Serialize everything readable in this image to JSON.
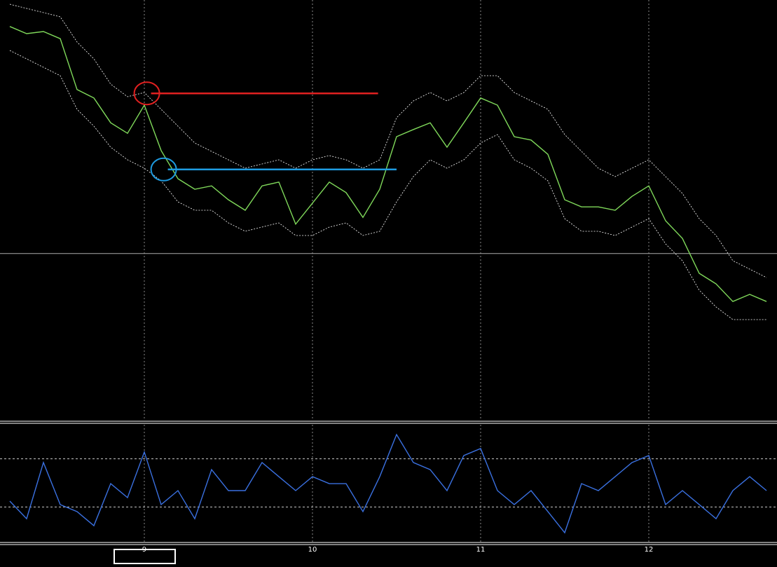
{
  "chart_data": [
    {
      "type": "line",
      "x": [
        8.2,
        8.3,
        8.4,
        8.5,
        8.6,
        8.7,
        8.8,
        8.9,
        9.0,
        9.1,
        9.2,
        9.3,
        9.4,
        9.5,
        9.6,
        9.7,
        9.8,
        9.9,
        10.0,
        10.1,
        10.2,
        10.3,
        10.4,
        10.5,
        10.6,
        10.7,
        10.8,
        10.9,
        11.0,
        11.1,
        11.2,
        11.3,
        11.4,
        11.5,
        11.6,
        11.7,
        11.8,
        11.9,
        12.0,
        12.1,
        12.2,
        12.3,
        12.4,
        12.5,
        12.6,
        12.7
      ],
      "xlim": [
        8.1417,
        12.7625
      ],
      "xticks": [
        9,
        10,
        11,
        12
      ],
      "ylim": [
        0,
        100
      ],
      "grid": true,
      "hline": 39.7,
      "series": [
        {
          "color": "#7fd85a",
          "style": "solid",
          "values": [
            93.7,
            92.0,
            92.5,
            90.8,
            78.7,
            76.7,
            70.8,
            68.3,
            75.0,
            64.2,
            57.5,
            55.0,
            55.8,
            52.5,
            50.0,
            55.8,
            56.7,
            46.7,
            51.7,
            56.7,
            54.2,
            48.3,
            55.0,
            67.5,
            69.2,
            70.8,
            65.0,
            70.8,
            76.7,
            75.0,
            67.5,
            66.7,
            63.3,
            52.5,
            50.8,
            50.8,
            50.0,
            53.3,
            55.8,
            47.5,
            43.3,
            35.0,
            32.5,
            28.3,
            30.0,
            28.3
          ]
        },
        {
          "color": "#ffffff",
          "style": "dotted",
          "values": [
            99,
            98,
            97,
            96,
            90,
            86,
            80,
            77,
            78,
            74,
            70,
            66,
            64,
            62,
            60,
            61,
            62,
            60,
            62,
            63,
            62,
            60,
            62,
            72,
            76,
            78,
            76,
            78,
            82,
            82,
            78,
            76,
            74,
            68,
            64,
            60,
            58,
            60,
            62,
            58,
            54,
            48,
            44,
            38,
            36,
            34
          ]
        },
        {
          "color": "#ffffff",
          "style": "dotted",
          "values": [
            88,
            86,
            84,
            82,
            74,
            70,
            65,
            62,
            60,
            57,
            52,
            50,
            50,
            47,
            45,
            46,
            47,
            44,
            44,
            46,
            47,
            44,
            45,
            52,
            58,
            62,
            60,
            62,
            66,
            68,
            62,
            60,
            57,
            48,
            45,
            45,
            44,
            46,
            48,
            42,
            38,
            31,
            27,
            24,
            24,
            24
          ]
        }
      ],
      "annotations": [
        {
          "color": "#e02020",
          "value": 77.8,
          "x": [
            9.04,
            10.39
          ]
        },
        {
          "color": "#1e9be0",
          "value": 59.7,
          "x": [
            9.14,
            10.5
          ]
        }
      ]
    },
    {
      "type": "line",
      "x": [
        8.2,
        8.3,
        8.4,
        8.5,
        8.6,
        8.7,
        8.8,
        8.9,
        9.0,
        9.1,
        9.2,
        9.3,
        9.4,
        9.5,
        9.6,
        9.7,
        9.8,
        9.9,
        10.0,
        10.1,
        10.2,
        10.3,
        10.4,
        10.5,
        10.6,
        10.7,
        10.8,
        10.9,
        11.0,
        11.1,
        11.2,
        11.3,
        11.4,
        11.5,
        11.6,
        11.7,
        11.8,
        11.9,
        12.0,
        12.1,
        12.2,
        12.3,
        12.4,
        12.5,
        12.6,
        12.7
      ],
      "xlim": [
        8.1417,
        12.7625
      ],
      "xticks": [
        9,
        10,
        11,
        12
      ],
      "ylim": [
        0,
        100
      ],
      "levels": [
        70,
        30
      ],
      "series": [
        {
          "color": "#3a70e0",
          "style": "solid",
          "values": [
            34.9,
            20.3,
            66.9,
            32.0,
            26.2,
            14.5,
            49.4,
            37.8,
            75.6,
            32.0,
            43.6,
            20.3,
            61.0,
            43.6,
            43.6,
            66.9,
            55.2,
            43.6,
            55.2,
            49.4,
            49.4,
            26.2,
            55.2,
            90.1,
            66.9,
            61.0,
            43.6,
            72.7,
            78.5,
            43.6,
            32.0,
            43.6,
            26.2,
            8.7,
            49.4,
            43.6,
            55.2,
            66.9,
            72.7,
            32.0,
            43.6,
            32.0,
            20.3,
            43.6,
            55.2,
            43.6
          ]
        }
      ]
    }
  ]
}
